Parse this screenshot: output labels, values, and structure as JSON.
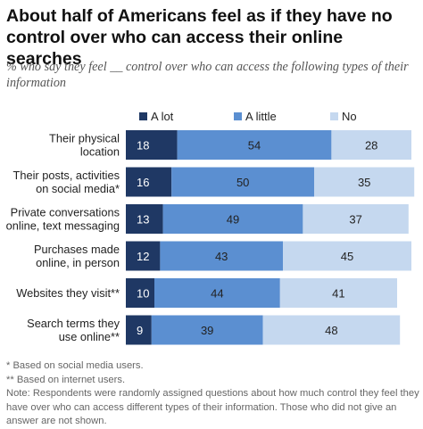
{
  "title": "About half of Americans feel as if they have no control over who can access their online searches",
  "subtitle": "% who say they feel __ control over who can access the following types of their information",
  "colors": {
    "a_lot": "#1f3864",
    "a_little": "#5b8fd1",
    "no": "#c5d8ef",
    "text_dark_bg": "#ffffff",
    "text_light_bg": "#222222"
  },
  "chart_data": {
    "type": "bar",
    "orientation": "horizontal",
    "stacked": true,
    "legend_position": "top",
    "categories": [
      [
        "Their physical",
        "location"
      ],
      [
        "Their posts, activities",
        "on social media*"
      ],
      [
        "Private conversations",
        "online, text messaging"
      ],
      [
        "Purchases made",
        "online, in person"
      ],
      [
        "Websites they visit**"
      ],
      [
        "Search terms they",
        "use online**"
      ]
    ],
    "series": [
      {
        "name": "A lot",
        "values": [
          18,
          16,
          13,
          12,
          10,
          9
        ]
      },
      {
        "name": "A little",
        "values": [
          54,
          50,
          49,
          43,
          44,
          39
        ]
      },
      {
        "name": "No",
        "values": [
          28,
          35,
          37,
          45,
          41,
          48
        ]
      }
    ]
  },
  "footnotes": [
    "* Based on social media users.",
    "** Based on internet users.",
    "Note: Respondents were randomly assigned questions about how much control they feel they have over who can access different types of their information. Those who did not give an answer are not shown."
  ]
}
